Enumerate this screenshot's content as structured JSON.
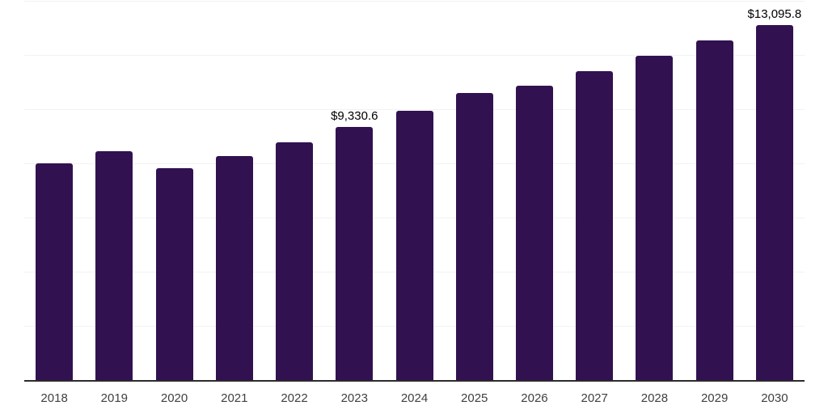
{
  "chart_data": {
    "type": "bar",
    "title": "",
    "xlabel": "",
    "ylabel": "",
    "categories": [
      "2018",
      "2019",
      "2020",
      "2021",
      "2022",
      "2023",
      "2024",
      "2025",
      "2026",
      "2027",
      "2028",
      "2029",
      "2030"
    ],
    "values": [
      8010,
      8460,
      7810,
      8260,
      8780,
      9330.6,
      9940,
      10600,
      10870,
      11400,
      11970,
      12540,
      13095.8
    ],
    "data_labels": [
      {
        "category": "2023",
        "text": "$9,330.6"
      },
      {
        "category": "2030",
        "text": "$13,095.8"
      }
    ],
    "ylim": [
      0,
      14030
    ],
    "gridline_values": [
      2000,
      4000,
      6000,
      8000,
      10000,
      12000,
      14000
    ],
    "grid": "horizontal",
    "legend": "none",
    "colors": {
      "bar": "#321150",
      "gridline": "#f2f2f2",
      "axis_line": "#2b2b2b",
      "tick_label": "#404040",
      "data_label": "#000000",
      "background": "#ffffff"
    }
  }
}
